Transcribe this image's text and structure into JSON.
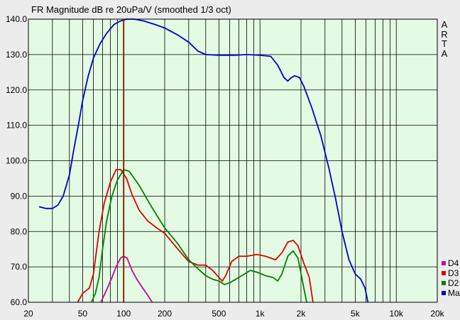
{
  "chart_data": {
    "type": "line",
    "title": "FR Magnitude dB re 20uPa/V (smoothed 1/3 oct)",
    "watermark": [
      "A",
      "R",
      "T",
      "A"
    ],
    "xscale": "log",
    "xlim": [
      20,
      20000
    ],
    "ylim": [
      60,
      140
    ],
    "grid": true,
    "x_ticks": [
      {
        "v": 20,
        "label": "20"
      },
      {
        "v": 50,
        "label": "50"
      },
      {
        "v": 100,
        "label": "100"
      },
      {
        "v": 200,
        "label": "200"
      },
      {
        "v": 500,
        "label": "500"
      },
      {
        "v": 1000,
        "label": "1k"
      },
      {
        "v": 2000,
        "label": "2k"
      },
      {
        "v": 5000,
        "label": "5k"
      },
      {
        "v": 10000,
        "label": "10k"
      },
      {
        "v": 20000,
        "label": "20k"
      }
    ],
    "y_ticks": [
      {
        "v": 60,
        "label": "60.0"
      },
      {
        "v": 70,
        "label": "70.0"
      },
      {
        "v": 80,
        "label": "80.0"
      },
      {
        "v": 90,
        "label": "90.0"
      },
      {
        "v": 100,
        "label": "100.0"
      },
      {
        "v": 110,
        "label": "110.0"
      },
      {
        "v": 120,
        "label": "120.0"
      },
      {
        "v": 130,
        "label": "130.0"
      },
      {
        "v": 140,
        "label": "140.0"
      }
    ],
    "marker_frequency": 100,
    "legend": {
      "position": "bottom-right",
      "entries": [
        "D4",
        "D3",
        "D2",
        "Ma"
      ]
    },
    "series": [
      {
        "name": "Ma",
        "color": "#0000cc",
        "points": [
          [
            24,
            87
          ],
          [
            27,
            86.5
          ],
          [
            30,
            86.5
          ],
          [
            33,
            87.5
          ],
          [
            36,
            90
          ],
          [
            40,
            96
          ],
          [
            43,
            103
          ],
          [
            47,
            111
          ],
          [
            50,
            117
          ],
          [
            55,
            124
          ],
          [
            60,
            129
          ],
          [
            67,
            133
          ],
          [
            75,
            136
          ],
          [
            85,
            138.5
          ],
          [
            95,
            139.5
          ],
          [
            105,
            140
          ],
          [
            120,
            140
          ],
          [
            140,
            139.5
          ],
          [
            170,
            138.5
          ],
          [
            200,
            137.5
          ],
          [
            250,
            135.5
          ],
          [
            300,
            133.5
          ],
          [
            350,
            131
          ],
          [
            400,
            130
          ],
          [
            500,
            129.8
          ],
          [
            650,
            129.8
          ],
          [
            800,
            130
          ],
          [
            1000,
            129.8
          ],
          [
            1200,
            129.5
          ],
          [
            1350,
            127
          ],
          [
            1500,
            123.5
          ],
          [
            1600,
            122.5
          ],
          [
            1700,
            123.5
          ],
          [
            1800,
            124
          ],
          [
            1950,
            123.5
          ],
          [
            2100,
            121
          ],
          [
            2400,
            115
          ],
          [
            2800,
            107
          ],
          [
            3200,
            98
          ],
          [
            3600,
            89
          ],
          [
            4000,
            80
          ],
          [
            4500,
            72
          ],
          [
            5000,
            68
          ],
          [
            5500,
            66.5
          ],
          [
            5900,
            64
          ],
          [
            6200,
            60
          ]
        ]
      },
      {
        "name": "D3",
        "color": "#dd0000",
        "points": [
          [
            46,
            60
          ],
          [
            50,
            62.5
          ],
          [
            56,
            64
          ],
          [
            60,
            68
          ],
          [
            66,
            80
          ],
          [
            72,
            88
          ],
          [
            80,
            94
          ],
          [
            88,
            97.5
          ],
          [
            95,
            97.5
          ],
          [
            105,
            95
          ],
          [
            115,
            90.5
          ],
          [
            130,
            86
          ],
          [
            150,
            83
          ],
          [
            175,
            81
          ],
          [
            200,
            79.5
          ],
          [
            250,
            75
          ],
          [
            300,
            71.5
          ],
          [
            350,
            70.5
          ],
          [
            400,
            70.5
          ],
          [
            450,
            69
          ],
          [
            500,
            67
          ],
          [
            530,
            66
          ],
          [
            560,
            67.5
          ],
          [
            620,
            71.5
          ],
          [
            700,
            73
          ],
          [
            800,
            73
          ],
          [
            950,
            73.5
          ],
          [
            1100,
            73
          ],
          [
            1300,
            72
          ],
          [
            1450,
            74
          ],
          [
            1600,
            77
          ],
          [
            1750,
            77.5
          ],
          [
            1900,
            76
          ],
          [
            2100,
            71
          ],
          [
            2300,
            67
          ],
          [
            2450,
            60
          ]
        ]
      },
      {
        "name": "D2",
        "color": "#008000",
        "points": [
          [
            58,
            60
          ],
          [
            62,
            62.5
          ],
          [
            66,
            67
          ],
          [
            70,
            75
          ],
          [
            75,
            83
          ],
          [
            82,
            90
          ],
          [
            90,
            94.5
          ],
          [
            100,
            97.5
          ],
          [
            110,
            97
          ],
          [
            130,
            93
          ],
          [
            160,
            87
          ],
          [
            200,
            81
          ],
          [
            250,
            76.5
          ],
          [
            300,
            72
          ],
          [
            350,
            69.5
          ],
          [
            400,
            67.5
          ],
          [
            450,
            66.5
          ],
          [
            500,
            66
          ],
          [
            550,
            65
          ],
          [
            600,
            65.5
          ],
          [
            700,
            67
          ],
          [
            850,
            69
          ],
          [
            950,
            68.5
          ],
          [
            1100,
            67.5
          ],
          [
            1250,
            67
          ],
          [
            1350,
            66
          ],
          [
            1450,
            68
          ],
          [
            1600,
            73
          ],
          [
            1750,
            74.5
          ],
          [
            1900,
            72.5
          ],
          [
            2050,
            66
          ],
          [
            2200,
            60
          ]
        ]
      },
      {
        "name": "D4",
        "color": "#cc0099",
        "points": [
          [
            68,
            60
          ],
          [
            75,
            63.5
          ],
          [
            82,
            67
          ],
          [
            88,
            70
          ],
          [
            95,
            72.5
          ],
          [
            100,
            73
          ],
          [
            106,
            72.5
          ],
          [
            115,
            69
          ],
          [
            125,
            66.5
          ],
          [
            138,
            64
          ],
          [
            150,
            62
          ],
          [
            162,
            60
          ]
        ]
      }
    ]
  }
}
